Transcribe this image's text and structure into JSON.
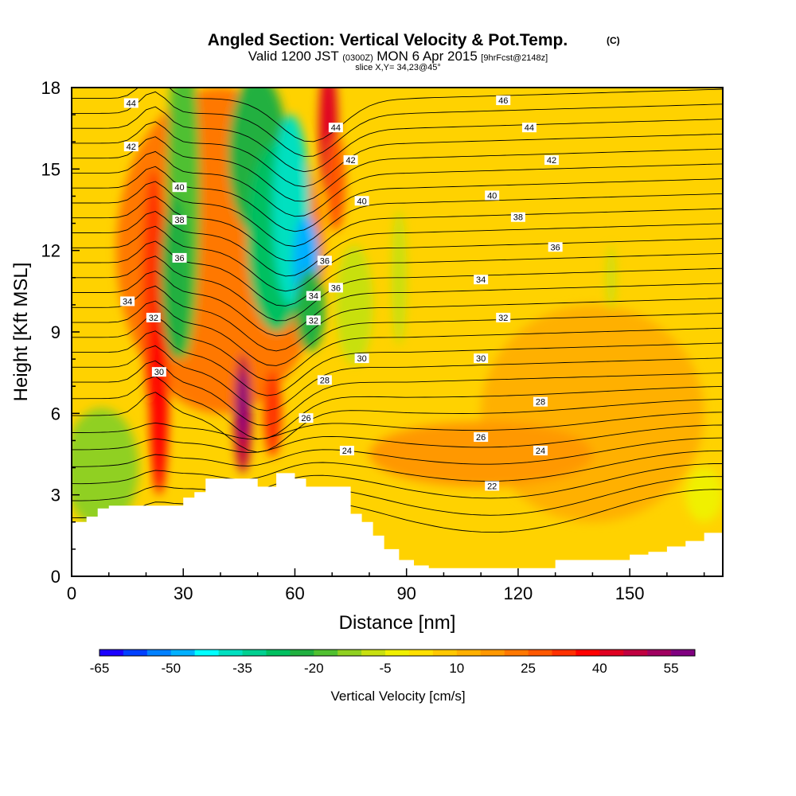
{
  "header": {
    "title": "Angled Section: Vertical Velocity & Pot.Temp.",
    "title_units": "(C)",
    "valid_prefix": "Valid 1200 JST",
    "valid_zulu": "(0300Z)",
    "valid_date": "MON 6 Apr 2015",
    "forecast_tag": "[9hrFcst@2148z]",
    "slice_label": "slice X,Y= 34,23@45°"
  },
  "chart_data": {
    "type": "heatmap",
    "xlabel": "Distance [nm]",
    "ylabel": "Height [Kft MSL]",
    "xlim": [
      0,
      175
    ],
    "ylim": [
      0,
      18
    ],
    "x_ticks": [
      "0",
      "30",
      "60",
      "90",
      "120",
      "150"
    ],
    "x_tick_values": [
      0,
      30,
      60,
      90,
      120,
      150
    ],
    "y_ticks": [
      "0",
      "3",
      "6",
      "9",
      "12",
      "15",
      "18"
    ],
    "y_tick_values": [
      0,
      3,
      6,
      9,
      12,
      15,
      18
    ],
    "grid": false,
    "colorbar": {
      "label": "Vertical Velocity [cm/s]",
      "levels": [
        -65,
        -60,
        -55,
        -50,
        -45,
        -40,
        -35,
        -30,
        -25,
        -20,
        -15,
        -10,
        -5,
        0,
        5,
        10,
        15,
        20,
        25,
        30,
        35,
        40,
        45,
        50,
        55,
        60
      ],
      "tick_labels": [
        "-65",
        "-50",
        "-35",
        "-20",
        "-5",
        "10",
        "25",
        "40",
        "55"
      ],
      "tick_values": [
        -65,
        -50,
        -35,
        -20,
        -5,
        10,
        25,
        40,
        55
      ],
      "colors": [
        "#1a00ff",
        "#0040ff",
        "#0080ff",
        "#00b0ff",
        "#00ffff",
        "#00e0c0",
        "#00d090",
        "#00c060",
        "#20b040",
        "#50c030",
        "#90d020",
        "#c8e010",
        "#f0f000",
        "#ffe000",
        "#ffc800",
        "#ffb000",
        "#ff9800",
        "#ff7800",
        "#ff5800",
        "#ff3000",
        "#ff0000",
        "#e00020",
        "#c00040",
        "#a00060",
        "#800080"
      ]
    },
    "velocity_features": [
      {
        "kind": "updraft",
        "x": 23,
        "top": 15,
        "bottom": 3,
        "peak": 40
      },
      {
        "kind": "downdraft",
        "x": 32,
        "top": 18,
        "bottom": 8,
        "peak": -25
      },
      {
        "kind": "downdraft",
        "x": 57,
        "top": 18,
        "bottom": 8,
        "peak": -45
      },
      {
        "kind": "updraft",
        "x": 46,
        "top": 8,
        "bottom": 4,
        "peak": 55
      },
      {
        "kind": "updraft",
        "x": 70,
        "top": 18,
        "bottom": 13,
        "peak": 40
      }
    ],
    "terrain": {
      "x": [
        0,
        2,
        4,
        7,
        10,
        13,
        16,
        19,
        22,
        25,
        28,
        30,
        33,
        36,
        39,
        42,
        45,
        48,
        50,
        52,
        55,
        58,
        60,
        63,
        66,
        69,
        72,
        75,
        78,
        81,
        84,
        88,
        92,
        96,
        100,
        110,
        120,
        126,
        130,
        135,
        140,
        145,
        150,
        155,
        160,
        165,
        170,
        175
      ],
      "y": [
        2,
        2,
        2.2,
        2.5,
        2.6,
        2.6,
        2.6,
        2.6,
        2.6,
        2.6,
        2.6,
        2.9,
        3.1,
        3.6,
        3.6,
        3.6,
        3.6,
        3.6,
        3.3,
        3.3,
        3.8,
        3.8,
        3.6,
        3.3,
        3.3,
        3.3,
        3.3,
        2.3,
        2,
        1.5,
        1.0,
        0.6,
        0.4,
        0.3,
        0.3,
        0.3,
        0.3,
        0.3,
        0.6,
        0.6,
        0.6,
        0.6,
        0.8,
        0.9,
        1.1,
        1.3,
        1.6,
        1.6
      ]
    },
    "isentrope_labels": [
      {
        "text": "44",
        "x": 16,
        "y": 17.4
      },
      {
        "text": "42",
        "x": 16,
        "y": 15.8
      },
      {
        "text": "40",
        "x": 29,
        "y": 14.3
      },
      {
        "text": "38",
        "x": 29,
        "y": 13.1
      },
      {
        "text": "36",
        "x": 29,
        "y": 11.7
      },
      {
        "text": "34",
        "x": 15,
        "y": 10.1
      },
      {
        "text": "32",
        "x": 22,
        "y": 9.5
      },
      {
        "text": "30",
        "x": 23.5,
        "y": 7.5
      },
      {
        "text": "44",
        "x": 71,
        "y": 16.5
      },
      {
        "text": "42",
        "x": 75,
        "y": 15.3
      },
      {
        "text": "40",
        "x": 78,
        "y": 13.8
      },
      {
        "text": "36",
        "x": 68,
        "y": 11.6
      },
      {
        "text": "36",
        "x": 71,
        "y": 10.6
      },
      {
        "text": "34",
        "x": 65,
        "y": 10.3
      },
      {
        "text": "32",
        "x": 65,
        "y": 9.4
      },
      {
        "text": "30",
        "x": 78,
        "y": 8.0
      },
      {
        "text": "28",
        "x": 68,
        "y": 7.2
      },
      {
        "text": "26",
        "x": 63,
        "y": 5.8
      },
      {
        "text": "24",
        "x": 74,
        "y": 4.6
      },
      {
        "text": "46",
        "x": 116,
        "y": 17.5
      },
      {
        "text": "44",
        "x": 123,
        "y": 16.5
      },
      {
        "text": "42",
        "x": 129,
        "y": 15.3
      },
      {
        "text": "40",
        "x": 113,
        "y": 14.0
      },
      {
        "text": "38",
        "x": 120,
        "y": 13.2
      },
      {
        "text": "36",
        "x": 130,
        "y": 12.1
      },
      {
        "text": "34",
        "x": 110,
        "y": 10.9
      },
      {
        "text": "32",
        "x": 116,
        "y": 9.5
      },
      {
        "text": "30",
        "x": 110,
        "y": 8.0
      },
      {
        "text": "28",
        "x": 126,
        "y": 6.4
      },
      {
        "text": "26",
        "x": 110,
        "y": 5.1
      },
      {
        "text": "24",
        "x": 126,
        "y": 4.6
      },
      {
        "text": "22",
        "x": 113,
        "y": 3.3
      }
    ]
  }
}
